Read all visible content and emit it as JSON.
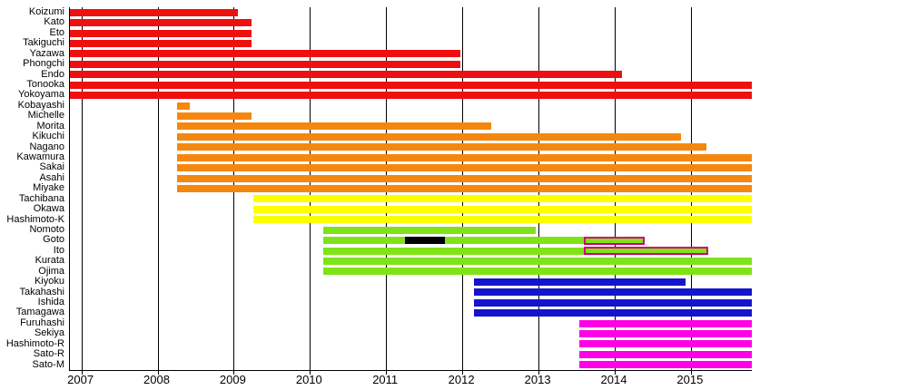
{
  "chart_data": {
    "type": "gantt-timeline",
    "title": "",
    "xlabel": "",
    "ylabel": "",
    "xlim": [
      2006.85,
      2015.8
    ],
    "grid": true,
    "x_ticks": [
      2007,
      2008,
      2009,
      2010,
      2011,
      2012,
      2013,
      2014,
      2015
    ],
    "x_tick_labels": [
      "2007",
      "2008",
      "2009",
      "2010",
      "2011",
      "2012",
      "2013",
      "2014",
      "2015"
    ],
    "colors": {
      "red": "#EE0F0F",
      "orange": "#F5870F",
      "yellow": "#FFFF00",
      "green": "#7FE317",
      "blue": "#1414CC",
      "magenta": "#FF00E6",
      "black": "#000000",
      "outline": "#CC0077"
    },
    "rows": [
      {
        "label": "Koizumi",
        "segments": [
          {
            "start": 2006.85,
            "end": 2009.06,
            "color": "red"
          }
        ]
      },
      {
        "label": "Kato",
        "segments": [
          {
            "start": 2006.85,
            "end": 2009.23,
            "color": "red"
          }
        ]
      },
      {
        "label": "Eto",
        "segments": [
          {
            "start": 2006.85,
            "end": 2009.23,
            "color": "red"
          }
        ]
      },
      {
        "label": "Takiguchi",
        "segments": [
          {
            "start": 2006.85,
            "end": 2009.23,
            "color": "red"
          }
        ]
      },
      {
        "label": "Yazawa",
        "segments": [
          {
            "start": 2006.85,
            "end": 2011.97,
            "color": "red"
          }
        ]
      },
      {
        "label": "Phongchi",
        "segments": [
          {
            "start": 2006.85,
            "end": 2011.97,
            "color": "red"
          }
        ]
      },
      {
        "label": "Endo",
        "segments": [
          {
            "start": 2006.85,
            "end": 2014.1,
            "color": "red"
          }
        ]
      },
      {
        "label": "Tonooka",
        "segments": [
          {
            "start": 2006.85,
            "end": 2015.8,
            "color": "red"
          }
        ]
      },
      {
        "label": "Yokoyama",
        "segments": [
          {
            "start": 2006.85,
            "end": 2015.8,
            "color": "red"
          }
        ]
      },
      {
        "label": "Kobayashi",
        "segments": [
          {
            "start": 2008.25,
            "end": 2008.42,
            "color": "orange"
          }
        ]
      },
      {
        "label": "Michelle",
        "segments": [
          {
            "start": 2008.25,
            "end": 2009.23,
            "color": "orange"
          }
        ]
      },
      {
        "label": "Morita",
        "segments": [
          {
            "start": 2008.25,
            "end": 2012.38,
            "color": "orange"
          }
        ]
      },
      {
        "label": "Kikuchi",
        "segments": [
          {
            "start": 2008.25,
            "end": 2014.87,
            "color": "orange"
          }
        ]
      },
      {
        "label": "Nagano",
        "segments": [
          {
            "start": 2008.25,
            "end": 2015.2,
            "color": "orange"
          }
        ]
      },
      {
        "label": "Kawamura",
        "segments": [
          {
            "start": 2008.25,
            "end": 2015.8,
            "color": "orange"
          }
        ]
      },
      {
        "label": "Sakai",
        "segments": [
          {
            "start": 2008.25,
            "end": 2015.8,
            "color": "orange"
          }
        ]
      },
      {
        "label": "Asahi",
        "segments": [
          {
            "start": 2008.25,
            "end": 2015.8,
            "color": "orange"
          }
        ]
      },
      {
        "label": "Miyake",
        "segments": [
          {
            "start": 2008.25,
            "end": 2015.8,
            "color": "orange"
          }
        ]
      },
      {
        "label": "Tachibana",
        "segments": [
          {
            "start": 2009.26,
            "end": 2015.8,
            "color": "yellow"
          }
        ]
      },
      {
        "label": "Okawa",
        "segments": [
          {
            "start": 2009.26,
            "end": 2015.8,
            "color": "yellow"
          }
        ]
      },
      {
        "label": "Hashimoto-K",
        "segments": [
          {
            "start": 2009.26,
            "end": 2015.8,
            "color": "yellow"
          }
        ]
      },
      {
        "label": "Nomoto",
        "segments": [
          {
            "start": 2010.18,
            "end": 2012.96,
            "color": "green"
          }
        ]
      },
      {
        "label": "Goto",
        "segments": [
          {
            "start": 2010.18,
            "end": 2013.6,
            "color": "green"
          },
          {
            "start": 2013.6,
            "end": 2014.4,
            "color": "green",
            "border": "outline"
          },
          {
            "start": 2011.25,
            "end": 2011.77,
            "color": "black",
            "overlay": true
          }
        ]
      },
      {
        "label": "Ito",
        "segments": [
          {
            "start": 2010.18,
            "end": 2013.6,
            "color": "green"
          },
          {
            "start": 2013.6,
            "end": 2015.23,
            "color": "green",
            "border": "outline"
          }
        ]
      },
      {
        "label": "Kurata",
        "segments": [
          {
            "start": 2010.18,
            "end": 2015.8,
            "color": "green"
          }
        ]
      },
      {
        "label": "Ojima",
        "segments": [
          {
            "start": 2010.18,
            "end": 2015.8,
            "color": "green"
          }
        ]
      },
      {
        "label": "Kiyoku",
        "segments": [
          {
            "start": 2012.15,
            "end": 2014.93,
            "color": "blue"
          }
        ]
      },
      {
        "label": "Takahashi",
        "segments": [
          {
            "start": 2012.15,
            "end": 2015.8,
            "color": "blue"
          }
        ]
      },
      {
        "label": "Ishida",
        "segments": [
          {
            "start": 2012.15,
            "end": 2015.8,
            "color": "blue"
          }
        ]
      },
      {
        "label": "Tamagawa",
        "segments": [
          {
            "start": 2012.15,
            "end": 2015.8,
            "color": "blue"
          }
        ]
      },
      {
        "label": "Furuhashi",
        "segments": [
          {
            "start": 2013.54,
            "end": 2015.8,
            "color": "magenta"
          }
        ]
      },
      {
        "label": "Sekiya",
        "segments": [
          {
            "start": 2013.54,
            "end": 2015.8,
            "color": "magenta"
          }
        ]
      },
      {
        "label": "Hashimoto-R",
        "segments": [
          {
            "start": 2013.54,
            "end": 2015.8,
            "color": "magenta"
          }
        ]
      },
      {
        "label": "Sato-R",
        "segments": [
          {
            "start": 2013.54,
            "end": 2015.8,
            "color": "magenta"
          }
        ]
      },
      {
        "label": "Sato-M",
        "segments": [
          {
            "start": 2013.54,
            "end": 2015.8,
            "color": "magenta"
          }
        ]
      }
    ]
  }
}
